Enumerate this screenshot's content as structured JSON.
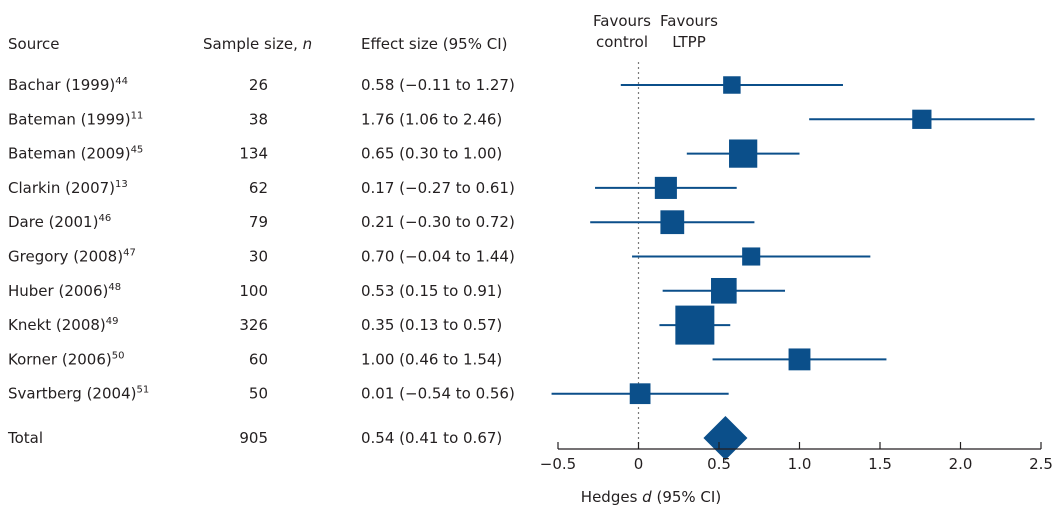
{
  "chart_data": {
    "type": "forest",
    "columns": {
      "source": "Source",
      "sample_size": "Sample size,",
      "sample_size_italic": "n",
      "effect_size": "Effect size (95% CI)"
    },
    "favours_left": [
      "Favours",
      "control"
    ],
    "favours_right": [
      "Favours",
      "LTPP"
    ],
    "studies": [
      {
        "name": "Bachar (1999)",
        "ref": "44",
        "n": "26",
        "effect_text": "0.58 (−0.11 to 1.27)",
        "d": 0.58,
        "lo": -0.11,
        "hi": 1.27,
        "weight": 26
      },
      {
        "name": "Bateman (1999)",
        "ref": "11",
        "n": "38",
        "effect_text": "1.76 (1.06 to 2.46)",
        "d": 1.76,
        "lo": 1.06,
        "hi": 2.46,
        "weight": 38
      },
      {
        "name": "Bateman (2009)",
        "ref": "45",
        "n": "134",
        "effect_text": "0.65 (0.30 to 1.00)",
        "d": 0.65,
        "lo": 0.3,
        "hi": 1.0,
        "weight": 134
      },
      {
        "name": "Clarkin (2007)",
        "ref": "13",
        "n": "62",
        "effect_text": "0.17 (−0.27 to 0.61)",
        "d": 0.17,
        "lo": -0.27,
        "hi": 0.61,
        "weight": 62
      },
      {
        "name": "Dare (2001)",
        "ref": "46",
        "n": "79",
        "effect_text": "0.21 (−0.30 to 0.72)",
        "d": 0.21,
        "lo": -0.3,
        "hi": 0.72,
        "weight": 79
      },
      {
        "name": "Gregory (2008)",
        "ref": "47",
        "n": "30",
        "effect_text": "0.70 (−0.04 to 1.44)",
        "d": 0.7,
        "lo": -0.04,
        "hi": 1.44,
        "weight": 30
      },
      {
        "name": "Huber (2006)",
        "ref": "48",
        "n": "100",
        "effect_text": "0.53 (0.15 to 0.91)",
        "d": 0.53,
        "lo": 0.15,
        "hi": 0.91,
        "weight": 100
      },
      {
        "name": "Knekt (2008)",
        "ref": "49",
        "n": "326",
        "effect_text": "0.35 (0.13 to 0.57)",
        "d": 0.35,
        "lo": 0.13,
        "hi": 0.57,
        "weight": 326
      },
      {
        "name": "Korner (2006)",
        "ref": "50",
        "n": "60",
        "effect_text": "1.00 (0.46 to 1.54)",
        "d": 1.0,
        "lo": 0.46,
        "hi": 1.54,
        "weight": 60
      },
      {
        "name": "Svartberg (2004)",
        "ref": "51",
        "n": "50",
        "effect_text": "0.01 (−0.54 to 0.56)",
        "d": 0.01,
        "lo": -0.54,
        "hi": 0.56,
        "weight": 50
      }
    ],
    "total": {
      "name": "Total",
      "n": "905",
      "effect_text": "0.54 (0.41 to 0.67)",
      "d": 0.54,
      "lo": 0.41,
      "hi": 0.67
    },
    "xlim": [
      -0.5,
      2.5
    ],
    "xticks": [
      -0.5,
      0,
      0.5,
      1.0,
      1.5,
      2.0,
      2.5
    ],
    "xtick_labels": [
      "−0.5",
      "0",
      "0.5",
      "1.0",
      "1.5",
      "2.0",
      "2.5"
    ],
    "xlabel_pre": "Hedges ",
    "xlabel_italic": "d",
    "xlabel_post": " (95% CI)",
    "null_line": 0,
    "colors": {
      "marker": "#0b4f8a",
      "text": "#231f20",
      "axis": "#231f20",
      "null_line": "#7a7a7a"
    }
  }
}
